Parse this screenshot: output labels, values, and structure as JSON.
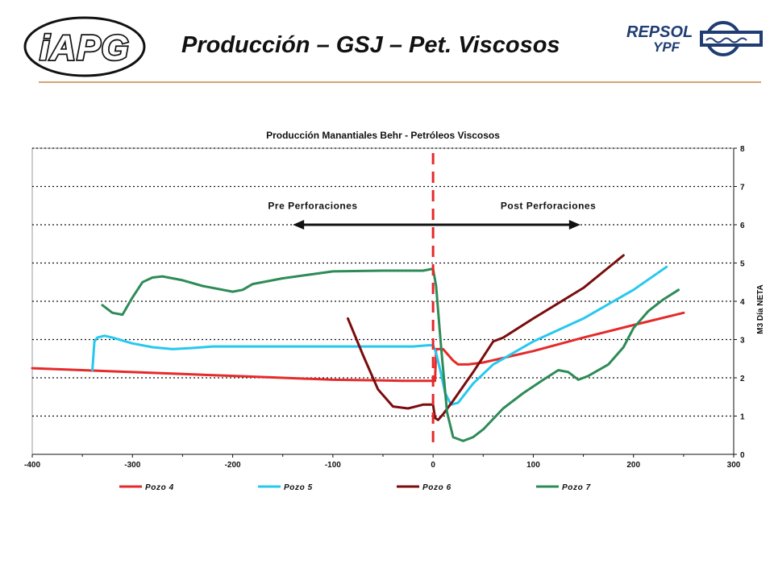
{
  "slide": {
    "title": "Producción – GSJ – Pet. Viscosos",
    "logo_left_text": "iAPG",
    "logo_right_text_top": "REPSOL",
    "logo_right_text_bottom": "YPF",
    "rule_color": "#d6a272"
  },
  "chart_data": {
    "type": "line",
    "title": "Producción Manantiales Behr - Petróleos Viscosos",
    "ylabel": "M3 Día NETA",
    "xlabel": "",
    "xlim": [
      -400,
      300
    ],
    "ylim": [
      0,
      8
    ],
    "x_ticks": [
      -400,
      -300,
      -200,
      -100,
      0,
      100,
      200,
      300
    ],
    "y_ticks": [
      0,
      1,
      2,
      3,
      4,
      5,
      6,
      7,
      8
    ],
    "y_axis_side": "right",
    "grid": "horizontal-dotted",
    "legend": "bottom",
    "vertical_marker": {
      "x": 0,
      "color": "#e52a2a",
      "style": "dashed"
    },
    "annotations": [
      {
        "text": "Pre Perforaciones",
        "x": -120,
        "y": 6.5
      },
      {
        "text": "Post Perforaciones",
        "x": 115,
        "y": 6.5
      }
    ],
    "arrow": {
      "x_from": -140,
      "x_to": 147,
      "y": 6.0
    },
    "series": [
      {
        "name": "Pozo 4",
        "color": "#e52a2a",
        "x": [
          -400,
          -350,
          -300,
          -250,
          -200,
          -150,
          -100,
          -50,
          -30,
          -10,
          2,
          3,
          10,
          15,
          20,
          25,
          35,
          50,
          75,
          100,
          150,
          200,
          250
        ],
        "y": [
          2.25,
          2.2,
          2.15,
          2.1,
          2.05,
          2.0,
          1.95,
          1.93,
          1.92,
          1.92,
          1.92,
          2.75,
          2.75,
          2.6,
          2.45,
          2.35,
          2.35,
          2.4,
          2.55,
          2.7,
          3.05,
          3.38,
          3.7
        ]
      },
      {
        "name": "Pozo 5",
        "color": "#27c8ef",
        "x": [
          -340,
          -338,
          -335,
          -328,
          -320,
          -300,
          -280,
          -260,
          -240,
          -220,
          -200,
          -150,
          -100,
          -50,
          -20,
          -5,
          0,
          3,
          8,
          12,
          18,
          25,
          40,
          60,
          100,
          150,
          200,
          233
        ],
        "y": [
          2.2,
          2.95,
          3.05,
          3.1,
          3.05,
          2.9,
          2.8,
          2.75,
          2.78,
          2.82,
          2.82,
          2.82,
          2.82,
          2.82,
          2.82,
          2.85,
          2.85,
          2.65,
          2.1,
          1.6,
          1.3,
          1.35,
          1.85,
          2.35,
          2.95,
          3.55,
          4.3,
          4.9
        ]
      },
      {
        "name": "Pozo 6",
        "color": "#7a0c0c",
        "x": [
          -85,
          -70,
          -55,
          -40,
          -25,
          -10,
          0,
          2,
          5,
          10,
          20,
          40,
          60,
          65,
          70,
          100,
          150,
          190
        ],
        "y": [
          3.55,
          2.6,
          1.7,
          1.25,
          1.2,
          1.3,
          1.3,
          0.95,
          0.9,
          1.05,
          1.4,
          2.15,
          2.95,
          3.0,
          3.05,
          3.55,
          4.35,
          5.2
        ]
      },
      {
        "name": "Pozo 7",
        "color": "#2e8b57",
        "x": [
          -330,
          -320,
          -310,
          -300,
          -290,
          -280,
          -270,
          -250,
          -230,
          -200,
          -190,
          -180,
          -150,
          -100,
          -50,
          -10,
          0,
          3,
          8,
          14,
          20,
          30,
          40,
          50,
          70,
          90,
          110,
          125,
          135,
          145,
          155,
          175,
          190,
          200,
          215,
          230,
          245
        ],
        "y": [
          3.9,
          3.7,
          3.65,
          4.1,
          4.5,
          4.62,
          4.65,
          4.55,
          4.4,
          4.25,
          4.3,
          4.45,
          4.6,
          4.78,
          4.8,
          4.8,
          4.85,
          4.4,
          2.8,
          1.1,
          0.45,
          0.35,
          0.45,
          0.65,
          1.2,
          1.6,
          1.95,
          2.2,
          2.15,
          1.95,
          2.05,
          2.35,
          2.8,
          3.3,
          3.75,
          4.05,
          4.3
        ]
      }
    ]
  }
}
